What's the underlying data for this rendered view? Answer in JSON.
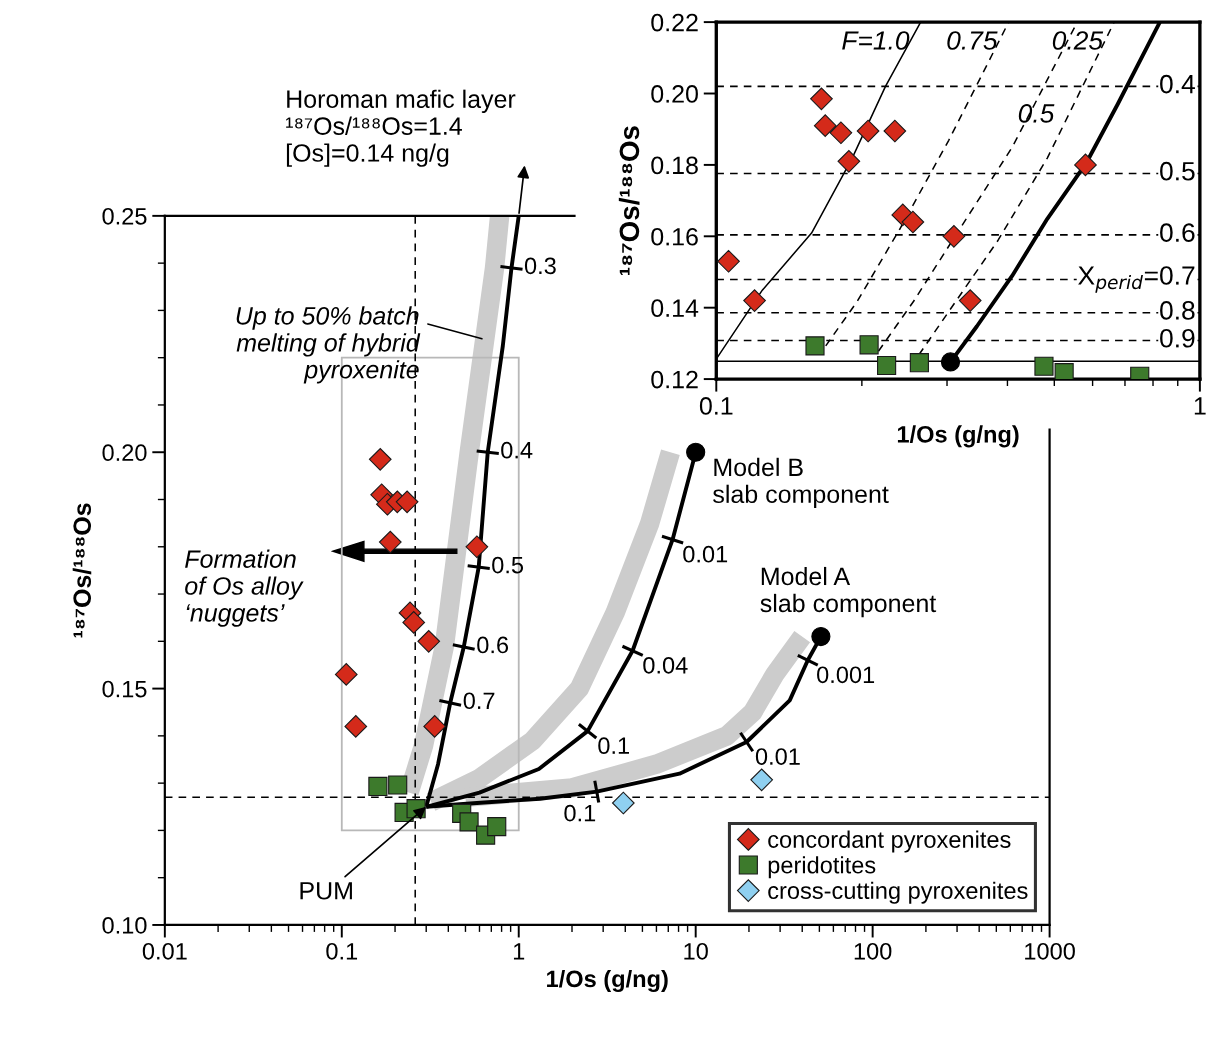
{
  "chart_data": [
    {
      "type": "scatter",
      "xlabel": "1/Os (g/ng)",
      "ylabel": "¹⁸⁷Os/¹⁸⁸Os",
      "log": "x",
      "xlim": [
        0.01,
        1000
      ],
      "ylim": [
        0.1,
        0.25
      ],
      "xticks": [
        0.01,
        {
          "value": 0.02,
          "label": null
        },
        {
          "value": 0.03,
          "label": null
        },
        {
          "value": 0.04,
          "label": null
        },
        {
          "value": 0.05,
          "label": null
        },
        {
          "value": 0.06,
          "label": null
        },
        {
          "value": 0.07,
          "label": null
        },
        {
          "value": 0.08,
          "label": null
        },
        {
          "value": 0.09,
          "label": null
        },
        0.1,
        {
          "value": 0.2,
          "label": null
        },
        {
          "value": 0.3,
          "label": null
        },
        {
          "value": 0.4,
          "label": null
        },
        {
          "value": 0.5,
          "label": null
        },
        {
          "value": 0.6,
          "label": null
        },
        {
          "value": 0.7,
          "label": null
        },
        {
          "value": 0.8,
          "label": null
        },
        {
          "value": 0.9,
          "label": null
        },
        1,
        {
          "value": 2,
          "label": null
        },
        {
          "value": 3,
          "label": null
        },
        {
          "value": 4,
          "label": null
        },
        {
          "value": 5,
          "label": null
        },
        {
          "value": 6,
          "label": null
        },
        {
          "value": 7,
          "label": null
        },
        {
          "value": 8,
          "label": null
        },
        {
          "value": 9,
          "label": null
        },
        10,
        {
          "value": 20,
          "label": null
        },
        {
          "value": 30,
          "label": null
        },
        {
          "value": 40,
          "label": null
        },
        {
          "value": 50,
          "label": null
        },
        {
          "value": 60,
          "label": null
        },
        {
          "value": 70,
          "label": null
        },
        {
          "value": 80,
          "label": null
        },
        {
          "value": 90,
          "label": null
        },
        100,
        {
          "value": 200,
          "label": null
        },
        {
          "value": 300,
          "label": null
        },
        {
          "value": 400,
          "label": null
        },
        {
          "value": 500,
          "label": null
        },
        {
          "value": 600,
          "label": null
        },
        {
          "value": 700,
          "label": null
        },
        {
          "value": 800,
          "label": null
        },
        {
          "value": 900,
          "label": null
        },
        1000
      ],
      "yticks": [
        {
          "value": 0.1,
          "label": "0.10"
        },
        {
          "value": 0.11,
          "label": null
        },
        {
          "value": 0.12,
          "label": null
        },
        {
          "value": 0.13,
          "label": null
        },
        {
          "value": 0.14,
          "label": null
        },
        0.15,
        {
          "value": 0.16,
          "label": null
        },
        {
          "value": 0.17,
          "label": null
        },
        {
          "value": 0.18,
          "label": null
        },
        {
          "value": 0.19,
          "label": null
        },
        {
          "value": 0.2,
          "label": "0.20"
        },
        {
          "value": 0.21,
          "label": null
        },
        {
          "value": 0.22,
          "label": null
        },
        {
          "value": 0.23,
          "label": null
        },
        {
          "value": 0.24,
          "label": null
        },
        0.25
      ],
      "grid": false,
      "legend": "bottom right",
      "series": [
        {
          "type": "line",
          "color": "#cccccc",
          "x": [
            0.24,
            0.29,
            0.38,
            0.525,
            0.73,
            0.78
          ],
          "values": [
            0.128,
            0.138,
            0.159,
            0.2,
            0.239,
            0.25
          ]
        },
        {
          "type": "line",
          "color": "#cccccc",
          "x": [
            0.32,
            0.6,
            1.2,
            2.2,
            3.5,
            5.5,
            7.2
          ],
          "values": [
            0.126,
            0.131,
            0.139,
            0.15,
            0.166,
            0.185,
            0.2
          ]
        },
        {
          "type": "line",
          "color": "#cccccc",
          "x": [
            0.5,
            2,
            6,
            15,
            21,
            28,
            40
          ],
          "values": [
            0.127,
            0.129,
            0.134,
            0.14,
            0.145,
            0.153,
            0.161
          ]
        },
        {
          "type": "line",
          "color": "#000000",
          "x": [
            0.3,
            0.35,
            0.41,
            0.489,
            0.594,
            0.668,
            0.813,
            0.91,
            1.0
          ],
          "values": [
            0.125,
            0.134,
            0.147,
            0.1588,
            0.1757,
            0.2,
            0.2225,
            0.239,
            0.25
          ]
        },
        {
          "type": "line",
          "color": "#000000",
          "x": [
            0.3,
            0.6,
            1.3,
            2.45,
            4.4,
            7.4,
            10
          ],
          "values": [
            0.125,
            0.128,
            0.133,
            0.141,
            0.158,
            0.1815,
            0.2
          ]
        },
        {
          "type": "line",
          "color": "#000000",
          "x": [
            0.3,
            0.58,
            1.32,
            2.76,
            8.1,
            19.4,
            34,
            43,
            51
          ],
          "values": [
            0.125,
            0.1258,
            0.1267,
            0.1282,
            0.132,
            0.1387,
            0.1475,
            0.156,
            0.161
          ]
        },
        {
          "marker": "circle",
          "color": "#000000",
          "x": [
            10,
            51
          ],
          "values": [
            0.2,
            0.161
          ]
        },
        {
          "marker": "diamond",
          "name": "concordant pyroxenites",
          "color": "#d42a1a",
          "x": [
            0.106,
            0.12,
            0.165,
            0.168,
            0.181,
            0.206,
            0.234,
            0.188,
            0.243,
            0.255,
            0.31,
            0.335,
            0.58
          ],
          "values": [
            0.153,
            0.142,
            0.1985,
            0.191,
            0.189,
            0.1895,
            0.1895,
            0.181,
            0.166,
            0.164,
            0.16,
            0.142,
            0.18
          ]
        },
        {
          "marker": "square",
          "name": "peridotites",
          "color": "#3d7a2c",
          "x": [
            0.16,
            0.207,
            0.225,
            0.263,
            0.476,
            0.524,
            0.65,
            0.751
          ],
          "values": [
            0.1293,
            0.1296,
            0.1238,
            0.1246,
            0.1236,
            0.1218,
            0.119,
            0.1208
          ]
        },
        {
          "marker": "diamond",
          "name": "cross-cutting pyroxenites",
          "color": "#8fd0f0",
          "x": [
            3.9,
            23.6
          ],
          "values": [
            0.1258,
            0.1307
          ]
        }
      ],
      "ref_lines": [
        {
          "axis": "y",
          "value": 0.127,
          "line_style": "dashed",
          "color": "#000000"
        },
        {
          "axis": "x",
          "value": 0.26,
          "line_style": "dashed",
          "color": "#000000"
        }
      ],
      "annotations": [
        "Horoman mafic layer\n¹⁸⁷Os/¹⁸⁸Os=1.4\n[Os]=0.14 ng/g",
        {
          "text": "Up to 50% batch\nmelting of hybrid\npyroxenite",
          "x": 0.62,
          "y": 0.224
        },
        {
          "text": "PUM",
          "x": 0.3,
          "y": 0.125
        },
        {
          "text": "Model B\nslab component",
          "x": 10,
          "y": 0.2
        },
        {
          "text": "Model A\nslab component",
          "x": 51,
          "y": 0.161
        },
        "Formation\nof Os alloy\n‘nuggets’",
        {
          "text": "0.7",
          "x": 0.41,
          "y": 0.147
        },
        {
          "text": "0.6",
          "x": 0.489,
          "y": 0.1588
        },
        {
          "text": "0.5",
          "x": 0.594,
          "y": 0.1757
        },
        {
          "text": "0.4",
          "x": 0.668,
          "y": 0.2
        },
        {
          "text": "0.3",
          "x": 0.91,
          "y": 0.239
        },
        {
          "text": "0.1",
          "x": 2.45,
          "y": 0.141
        },
        {
          "text": "0.04",
          "x": 4.4,
          "y": 0.158
        },
        {
          "text": "0.01",
          "x": 7.4,
          "y": 0.1815
        },
        {
          "text": "0.1",
          "x": 2.76,
          "y": 0.1282
        },
        {
          "text": "0.01",
          "x": 19.4,
          "y": 0.1387
        },
        {
          "text": "0.001",
          "x": 43,
          "y": 0.156
        }
      ]
    },
    {
      "type": "scatter",
      "xlabel": "1/Os (g/ng)",
      "ylabel": "¹⁸⁷Os/¹⁸⁸Os",
      "log": "x",
      "xlim": [
        0.1,
        1
      ],
      "ylim": [
        0.12,
        0.22
      ],
      "xticks": [
        0.1,
        {
          "value": 0.2,
          "label": null
        },
        {
          "value": 0.3,
          "label": null
        },
        {
          "value": 0.4,
          "label": null
        },
        {
          "value": 0.5,
          "label": null
        },
        {
          "value": 0.6,
          "label": null
        },
        {
          "value": 0.7,
          "label": null
        },
        {
          "value": 0.8,
          "label": null
        },
        {
          "value": 0.9,
          "label": null
        },
        1
      ],
      "yticks": [
        0.12,
        0.14,
        0.16,
        0.18,
        {
          "value": 0.2,
          "label": "0.20"
        },
        0.22
      ],
      "grid": false,
      "legend": false,
      "series": [
        {
          "type": "line",
          "name": "F=1.0",
          "color": "#000000",
          "line_style": "solid",
          "x": [
            0.1002,
            0.1245,
            0.1574,
            0.191,
            0.2238,
            0.2646
          ],
          "values": [
            0.1258,
            0.1449,
            0.1609,
            0.1819,
            0.202,
            0.22
          ]
        },
        {
          "type": "line",
          "name": "0.75",
          "color": "#000000",
          "line_style": "dashed",
          "x": [
            0.1684,
            0.1957,
            0.2393,
            0.3025,
            0.4023
          ],
          "values": [
            0.1293,
            0.1418,
            0.1619,
            0.1869,
            0.22
          ]
        },
        {
          "type": "line",
          "name": "0.5",
          "color": "#000000",
          "line_style": "dashed",
          "x": [
            0.2164,
            0.2559,
            0.3182,
            0.409,
            0.5577
          ],
          "values": [
            0.1278,
            0.1418,
            0.1619,
            0.1849,
            0.22
          ]
        },
        {
          "type": "line",
          "name": "0.25",
          "color": "#000000",
          "line_style": "dashed",
          "x": [
            0.2624,
            0.3129,
            0.3826,
            0.4836,
            0.6649
          ],
          "values": [
            0.1268,
            0.1418,
            0.1589,
            0.1819,
            0.22
          ]
        },
        {
          "type": "line",
          "color": "#000000",
          "line_style": "solid",
          "x": [
            0.3051,
            0.3459,
            0.409,
            0.4836,
            0.5815,
            0.6761,
            0.8265
          ],
          "values": [
            0.1248,
            0.1348,
            0.1489,
            0.1649,
            0.1804,
            0.197,
            0.22
          ]
        },
        {
          "marker": "circle",
          "color": "#000000",
          "x": [
            0.305
          ],
          "values": [
            0.1248
          ]
        },
        {
          "marker": "diamond",
          "color": "#d42a1a",
          "x": [
            0.106,
            0.12,
            0.165,
            0.168,
            0.181,
            0.206,
            0.234,
            0.188,
            0.243,
            0.255,
            0.31,
            0.335,
            0.58
          ],
          "values": [
            0.153,
            0.142,
            0.1985,
            0.191,
            0.189,
            0.1895,
            0.1895,
            0.181,
            0.166,
            0.164,
            0.16,
            0.142,
            0.18
          ]
        },
        {
          "marker": "square",
          "color": "#3d7a2c",
          "x": [
            0.16,
            0.207,
            0.225,
            0.263,
            0.476,
            0.524,
            0.751
          ],
          "values": [
            0.1293,
            0.1296,
            0.1238,
            0.1246,
            0.1236,
            0.1218,
            0.1208
          ]
        }
      ],
      "ref_lines": [
        {
          "axis": "y",
          "value": 0.125,
          "line_style": "solid",
          "color": "#000000"
        },
        {
          "axis": "y",
          "value": 0.202,
          "line_style": "dashed",
          "color": "#000000"
        },
        {
          "axis": "y",
          "value": 0.1776,
          "line_style": "dashed",
          "color": "#000000"
        },
        {
          "axis": "y",
          "value": 0.1604,
          "line_style": "dashed",
          "color": "#000000"
        },
        {
          "axis": "y",
          "value": 0.1479,
          "line_style": "dashed",
          "color": "#000000"
        },
        {
          "axis": "y",
          "value": 0.1386,
          "line_style": "dashed",
          "color": "#000000"
        },
        {
          "axis": "y",
          "value": 0.1308,
          "line_style": "dashed",
          "color": "#000000"
        }
      ],
      "annotations": [
        {
          "text": "0.4",
          "x": 1,
          "y": 0.202
        },
        {
          "text": "0.5",
          "x": 1,
          "y": 0.1776
        },
        {
          "text": "0.6",
          "x": 1,
          "y": 0.1604
        },
        {
          "text": "X$_{perid}$=0.7",
          "x": 1,
          "y": 0.1479
        },
        {
          "text": "0.8",
          "x": 1,
          "y": 0.1386
        },
        {
          "text": "0.9",
          "x": 1,
          "y": 0.1308
        }
      ]
    }
  ]
}
